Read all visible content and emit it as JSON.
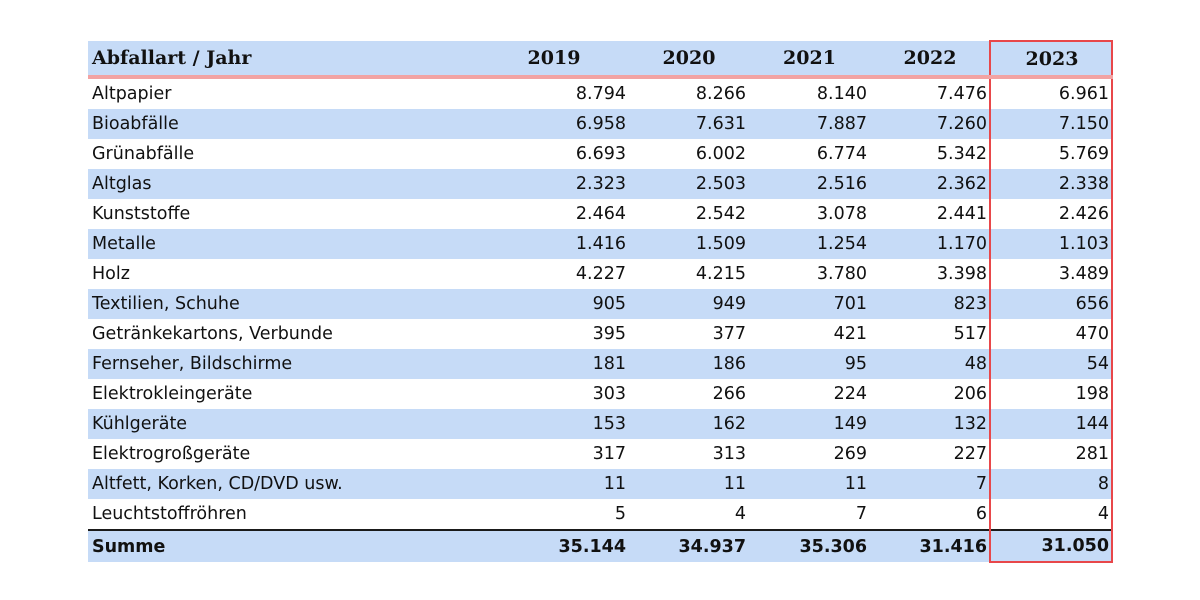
{
  "table": {
    "header": {
      "label": "Abfallart / Jahr",
      "years": [
        "2019",
        "2020",
        "2021",
        "2022",
        "2023"
      ]
    },
    "rows": [
      {
        "label": "Altpapier",
        "values": [
          "8.794",
          "8.266",
          "8.140",
          "7.476",
          "6.961"
        ]
      },
      {
        "label": "Bioabfälle",
        "values": [
          "6.958",
          "7.631",
          "7.887",
          "7.260",
          "7.150"
        ]
      },
      {
        "label": "Grünabfälle",
        "values": [
          "6.693",
          "6.002",
          "6.774",
          "5.342",
          "5.769"
        ]
      },
      {
        "label": "Altglas",
        "values": [
          "2.323",
          "2.503",
          "2.516",
          "2.362",
          "2.338"
        ]
      },
      {
        "label": "Kunststoffe",
        "values": [
          "2.464",
          "2.542",
          "3.078",
          "2.441",
          "2.426"
        ]
      },
      {
        "label": "Metalle",
        "values": [
          "1.416",
          "1.509",
          "1.254",
          "1.170",
          "1.103"
        ]
      },
      {
        "label": "Holz",
        "values": [
          "4.227",
          "4.215",
          "3.780",
          "3.398",
          "3.489"
        ]
      },
      {
        "label": "Textilien, Schuhe",
        "values": [
          "905",
          "949",
          "701",
          "823",
          "656"
        ]
      },
      {
        "label": "Getränkekartons, Verbunde",
        "values": [
          "395",
          "377",
          "421",
          "517",
          "470"
        ]
      },
      {
        "label": "Fernseher, Bildschirme",
        "values": [
          "181",
          "186",
          "95",
          "48",
          "54"
        ]
      },
      {
        "label": "Elektrokleingeräte",
        "values": [
          "303",
          "266",
          "224",
          "206",
          "198"
        ]
      },
      {
        "label": "Kühlgeräte",
        "values": [
          "153",
          "162",
          "149",
          "132",
          "144"
        ]
      },
      {
        "label": "Elektrogroßgeräte",
        "values": [
          "317",
          "313",
          "269",
          "227",
          "281"
        ]
      },
      {
        "label": "Altfett, Korken, CD/DVD usw.",
        "values": [
          "11",
          "11",
          "11",
          "7",
          "8"
        ]
      },
      {
        "label": "Leuchtstoffröhren",
        "values": [
          "5",
          "4",
          "7",
          "6",
          "4"
        ]
      }
    ],
    "sum": {
      "label": "Summe",
      "values": [
        "35.144",
        "34.937",
        "35.306",
        "31.416",
        "31.050"
      ]
    }
  },
  "colors": {
    "row_band": "#c6dbf7",
    "header_rule": "#f2a3a3",
    "highlight_border": "#e8474a"
  }
}
